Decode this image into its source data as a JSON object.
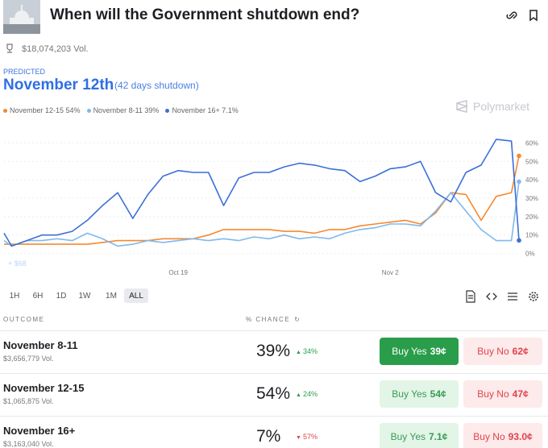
{
  "header": {
    "title": "When will the Government shutdown end?",
    "volume": "$18,074,203 Vol.",
    "predicted_label": "PREDICTED",
    "predicted_value": "November 12th",
    "predicted_note": "(42 days shutdown)",
    "brand": "Polymarket"
  },
  "chart_data": {
    "type": "line",
    "x": [
      7.5,
      8,
      9,
      10,
      11,
      12,
      13,
      14,
      15,
      16,
      17,
      18,
      19,
      20,
      21,
      22,
      23,
      24,
      25,
      26,
      27,
      28,
      29,
      30,
      31,
      32,
      33,
      34,
      35,
      36,
      37,
      38,
      39,
      40,
      41,
      41.5
    ],
    "xlim": [
      7.5,
      41.5
    ],
    "xticks": [
      {
        "value": 19,
        "label": "Oct 19"
      },
      {
        "value": 33,
        "label": "Nov 2"
      }
    ],
    "ylim": [
      -5,
      65
    ],
    "yticks": [
      {
        "value": 0,
        "label": "0%"
      },
      {
        "value": 10,
        "label": "10%"
      },
      {
        "value": 20,
        "label": "20%"
      },
      {
        "value": 30,
        "label": "30%"
      },
      {
        "value": 40,
        "label": "40%"
      },
      {
        "value": 50,
        "label": "50%"
      },
      {
        "value": 60,
        "label": "60%"
      }
    ],
    "grid": true,
    "annotation": "+ $68",
    "series": [
      {
        "name": "November 12-15 54%",
        "color": "#f5892f",
        "values": [
          5,
          5,
          5,
          5,
          5,
          5,
          5,
          6,
          7,
          7,
          7,
          8,
          8,
          8,
          10,
          13,
          13,
          13,
          13,
          12,
          12,
          11,
          13,
          13,
          15,
          16,
          17,
          18,
          16,
          22,
          33,
          32,
          18,
          31,
          33,
          53
        ]
      },
      {
        "name": "November 8-11 39%",
        "color": "#7fb9ee",
        "values": [
          7,
          4,
          7,
          7,
          8,
          7,
          11,
          8,
          4,
          5,
          7,
          6,
          7,
          8,
          7,
          8,
          7,
          9,
          8,
          10,
          8,
          9,
          8,
          11,
          13,
          14,
          16,
          16,
          15,
          23,
          33,
          23,
          13,
          7,
          7,
          39
        ]
      },
      {
        "name": "November 16+ 7.1%",
        "color": "#3c6fd8",
        "values": [
          11,
          4,
          7,
          10,
          10,
          12,
          18,
          26,
          33,
          19,
          32,
          42,
          45,
          44,
          44,
          26,
          41,
          44,
          44,
          47,
          49,
          48,
          46,
          45,
          39,
          42,
          46,
          47,
          50,
          33,
          28,
          44,
          48,
          62,
          61,
          7.1
        ]
      }
    ]
  },
  "range_buttons": [
    "1H",
    "6H",
    "1D",
    "1W",
    "1M",
    "ALL"
  ],
  "table": {
    "columns": [
      "OUTCOME",
      "% CHANCE"
    ],
    "rows": [
      {
        "name": "November 8-11",
        "volume": "$3,656,779 Vol.",
        "chance": "39%",
        "change": "34%",
        "yes_label": "Buy Yes",
        "yes_price": "39¢",
        "no_label": "Buy No",
        "no_price": "62¢"
      },
      {
        "name": "November 12-15",
        "volume": "$1,065,875 Vol.",
        "chance": "54%",
        "change": "24%",
        "yes_label": "Buy Yes",
        "yes_price": "54¢",
        "no_label": "Buy No",
        "no_price": "47¢"
      },
      {
        "name": "November 16+",
        "volume": "$3,163,040 Vol.",
        "chance": "7%",
        "change": "57%",
        "yes_label": "Buy Yes",
        "yes_price": "7.1¢",
        "no_label": "Buy No",
        "no_price": "93.0¢"
      }
    ]
  }
}
